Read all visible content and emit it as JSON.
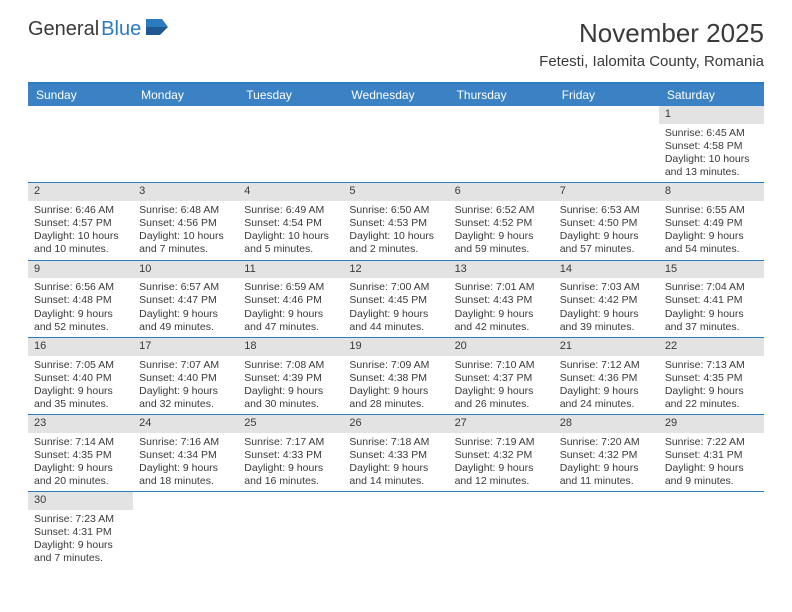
{
  "logo": {
    "general": "General",
    "blue": "Blue"
  },
  "title": "November 2025",
  "location": "Fetesti, Ialomita County, Romania",
  "colors": {
    "header_bg": "#3b82c4",
    "border": "#2b7bbf",
    "daynum_bg": "#e3e3e3",
    "text": "#3a3a3a",
    "white": "#ffffff"
  },
  "day_headers": [
    "Sunday",
    "Monday",
    "Tuesday",
    "Wednesday",
    "Thursday",
    "Friday",
    "Saturday"
  ],
  "weeks": [
    [
      {
        "blank": true
      },
      {
        "blank": true
      },
      {
        "blank": true
      },
      {
        "blank": true
      },
      {
        "blank": true
      },
      {
        "blank": true
      },
      {
        "day": "1",
        "sunrise": "Sunrise: 6:45 AM",
        "sunset": "Sunset: 4:58 PM",
        "daylight1": "Daylight: 10 hours",
        "daylight2": "and 13 minutes."
      }
    ],
    [
      {
        "day": "2",
        "sunrise": "Sunrise: 6:46 AM",
        "sunset": "Sunset: 4:57 PM",
        "daylight1": "Daylight: 10 hours",
        "daylight2": "and 10 minutes."
      },
      {
        "day": "3",
        "sunrise": "Sunrise: 6:48 AM",
        "sunset": "Sunset: 4:56 PM",
        "daylight1": "Daylight: 10 hours",
        "daylight2": "and 7 minutes."
      },
      {
        "day": "4",
        "sunrise": "Sunrise: 6:49 AM",
        "sunset": "Sunset: 4:54 PM",
        "daylight1": "Daylight: 10 hours",
        "daylight2": "and 5 minutes."
      },
      {
        "day": "5",
        "sunrise": "Sunrise: 6:50 AM",
        "sunset": "Sunset: 4:53 PM",
        "daylight1": "Daylight: 10 hours",
        "daylight2": "and 2 minutes."
      },
      {
        "day": "6",
        "sunrise": "Sunrise: 6:52 AM",
        "sunset": "Sunset: 4:52 PM",
        "daylight1": "Daylight: 9 hours",
        "daylight2": "and 59 minutes."
      },
      {
        "day": "7",
        "sunrise": "Sunrise: 6:53 AM",
        "sunset": "Sunset: 4:50 PM",
        "daylight1": "Daylight: 9 hours",
        "daylight2": "and 57 minutes."
      },
      {
        "day": "8",
        "sunrise": "Sunrise: 6:55 AM",
        "sunset": "Sunset: 4:49 PM",
        "daylight1": "Daylight: 9 hours",
        "daylight2": "and 54 minutes."
      }
    ],
    [
      {
        "day": "9",
        "sunrise": "Sunrise: 6:56 AM",
        "sunset": "Sunset: 4:48 PM",
        "daylight1": "Daylight: 9 hours",
        "daylight2": "and 52 minutes."
      },
      {
        "day": "10",
        "sunrise": "Sunrise: 6:57 AM",
        "sunset": "Sunset: 4:47 PM",
        "daylight1": "Daylight: 9 hours",
        "daylight2": "and 49 minutes."
      },
      {
        "day": "11",
        "sunrise": "Sunrise: 6:59 AM",
        "sunset": "Sunset: 4:46 PM",
        "daylight1": "Daylight: 9 hours",
        "daylight2": "and 47 minutes."
      },
      {
        "day": "12",
        "sunrise": "Sunrise: 7:00 AM",
        "sunset": "Sunset: 4:45 PM",
        "daylight1": "Daylight: 9 hours",
        "daylight2": "and 44 minutes."
      },
      {
        "day": "13",
        "sunrise": "Sunrise: 7:01 AM",
        "sunset": "Sunset: 4:43 PM",
        "daylight1": "Daylight: 9 hours",
        "daylight2": "and 42 minutes."
      },
      {
        "day": "14",
        "sunrise": "Sunrise: 7:03 AM",
        "sunset": "Sunset: 4:42 PM",
        "daylight1": "Daylight: 9 hours",
        "daylight2": "and 39 minutes."
      },
      {
        "day": "15",
        "sunrise": "Sunrise: 7:04 AM",
        "sunset": "Sunset: 4:41 PM",
        "daylight1": "Daylight: 9 hours",
        "daylight2": "and 37 minutes."
      }
    ],
    [
      {
        "day": "16",
        "sunrise": "Sunrise: 7:05 AM",
        "sunset": "Sunset: 4:40 PM",
        "daylight1": "Daylight: 9 hours",
        "daylight2": "and 35 minutes."
      },
      {
        "day": "17",
        "sunrise": "Sunrise: 7:07 AM",
        "sunset": "Sunset: 4:40 PM",
        "daylight1": "Daylight: 9 hours",
        "daylight2": "and 32 minutes."
      },
      {
        "day": "18",
        "sunrise": "Sunrise: 7:08 AM",
        "sunset": "Sunset: 4:39 PM",
        "daylight1": "Daylight: 9 hours",
        "daylight2": "and 30 minutes."
      },
      {
        "day": "19",
        "sunrise": "Sunrise: 7:09 AM",
        "sunset": "Sunset: 4:38 PM",
        "daylight1": "Daylight: 9 hours",
        "daylight2": "and 28 minutes."
      },
      {
        "day": "20",
        "sunrise": "Sunrise: 7:10 AM",
        "sunset": "Sunset: 4:37 PM",
        "daylight1": "Daylight: 9 hours",
        "daylight2": "and 26 minutes."
      },
      {
        "day": "21",
        "sunrise": "Sunrise: 7:12 AM",
        "sunset": "Sunset: 4:36 PM",
        "daylight1": "Daylight: 9 hours",
        "daylight2": "and 24 minutes."
      },
      {
        "day": "22",
        "sunrise": "Sunrise: 7:13 AM",
        "sunset": "Sunset: 4:35 PM",
        "daylight1": "Daylight: 9 hours",
        "daylight2": "and 22 minutes."
      }
    ],
    [
      {
        "day": "23",
        "sunrise": "Sunrise: 7:14 AM",
        "sunset": "Sunset: 4:35 PM",
        "daylight1": "Daylight: 9 hours",
        "daylight2": "and 20 minutes."
      },
      {
        "day": "24",
        "sunrise": "Sunrise: 7:16 AM",
        "sunset": "Sunset: 4:34 PM",
        "daylight1": "Daylight: 9 hours",
        "daylight2": "and 18 minutes."
      },
      {
        "day": "25",
        "sunrise": "Sunrise: 7:17 AM",
        "sunset": "Sunset: 4:33 PM",
        "daylight1": "Daylight: 9 hours",
        "daylight2": "and 16 minutes."
      },
      {
        "day": "26",
        "sunrise": "Sunrise: 7:18 AM",
        "sunset": "Sunset: 4:33 PM",
        "daylight1": "Daylight: 9 hours",
        "daylight2": "and 14 minutes."
      },
      {
        "day": "27",
        "sunrise": "Sunrise: 7:19 AM",
        "sunset": "Sunset: 4:32 PM",
        "daylight1": "Daylight: 9 hours",
        "daylight2": "and 12 minutes."
      },
      {
        "day": "28",
        "sunrise": "Sunrise: 7:20 AM",
        "sunset": "Sunset: 4:32 PM",
        "daylight1": "Daylight: 9 hours",
        "daylight2": "and 11 minutes."
      },
      {
        "day": "29",
        "sunrise": "Sunrise: 7:22 AM",
        "sunset": "Sunset: 4:31 PM",
        "daylight1": "Daylight: 9 hours",
        "daylight2": "and 9 minutes."
      }
    ],
    [
      {
        "day": "30",
        "sunrise": "Sunrise: 7:23 AM",
        "sunset": "Sunset: 4:31 PM",
        "daylight1": "Daylight: 9 hours",
        "daylight2": "and 7 minutes."
      },
      {
        "blank": true
      },
      {
        "blank": true
      },
      {
        "blank": true
      },
      {
        "blank": true
      },
      {
        "blank": true
      },
      {
        "blank": true
      }
    ]
  ]
}
